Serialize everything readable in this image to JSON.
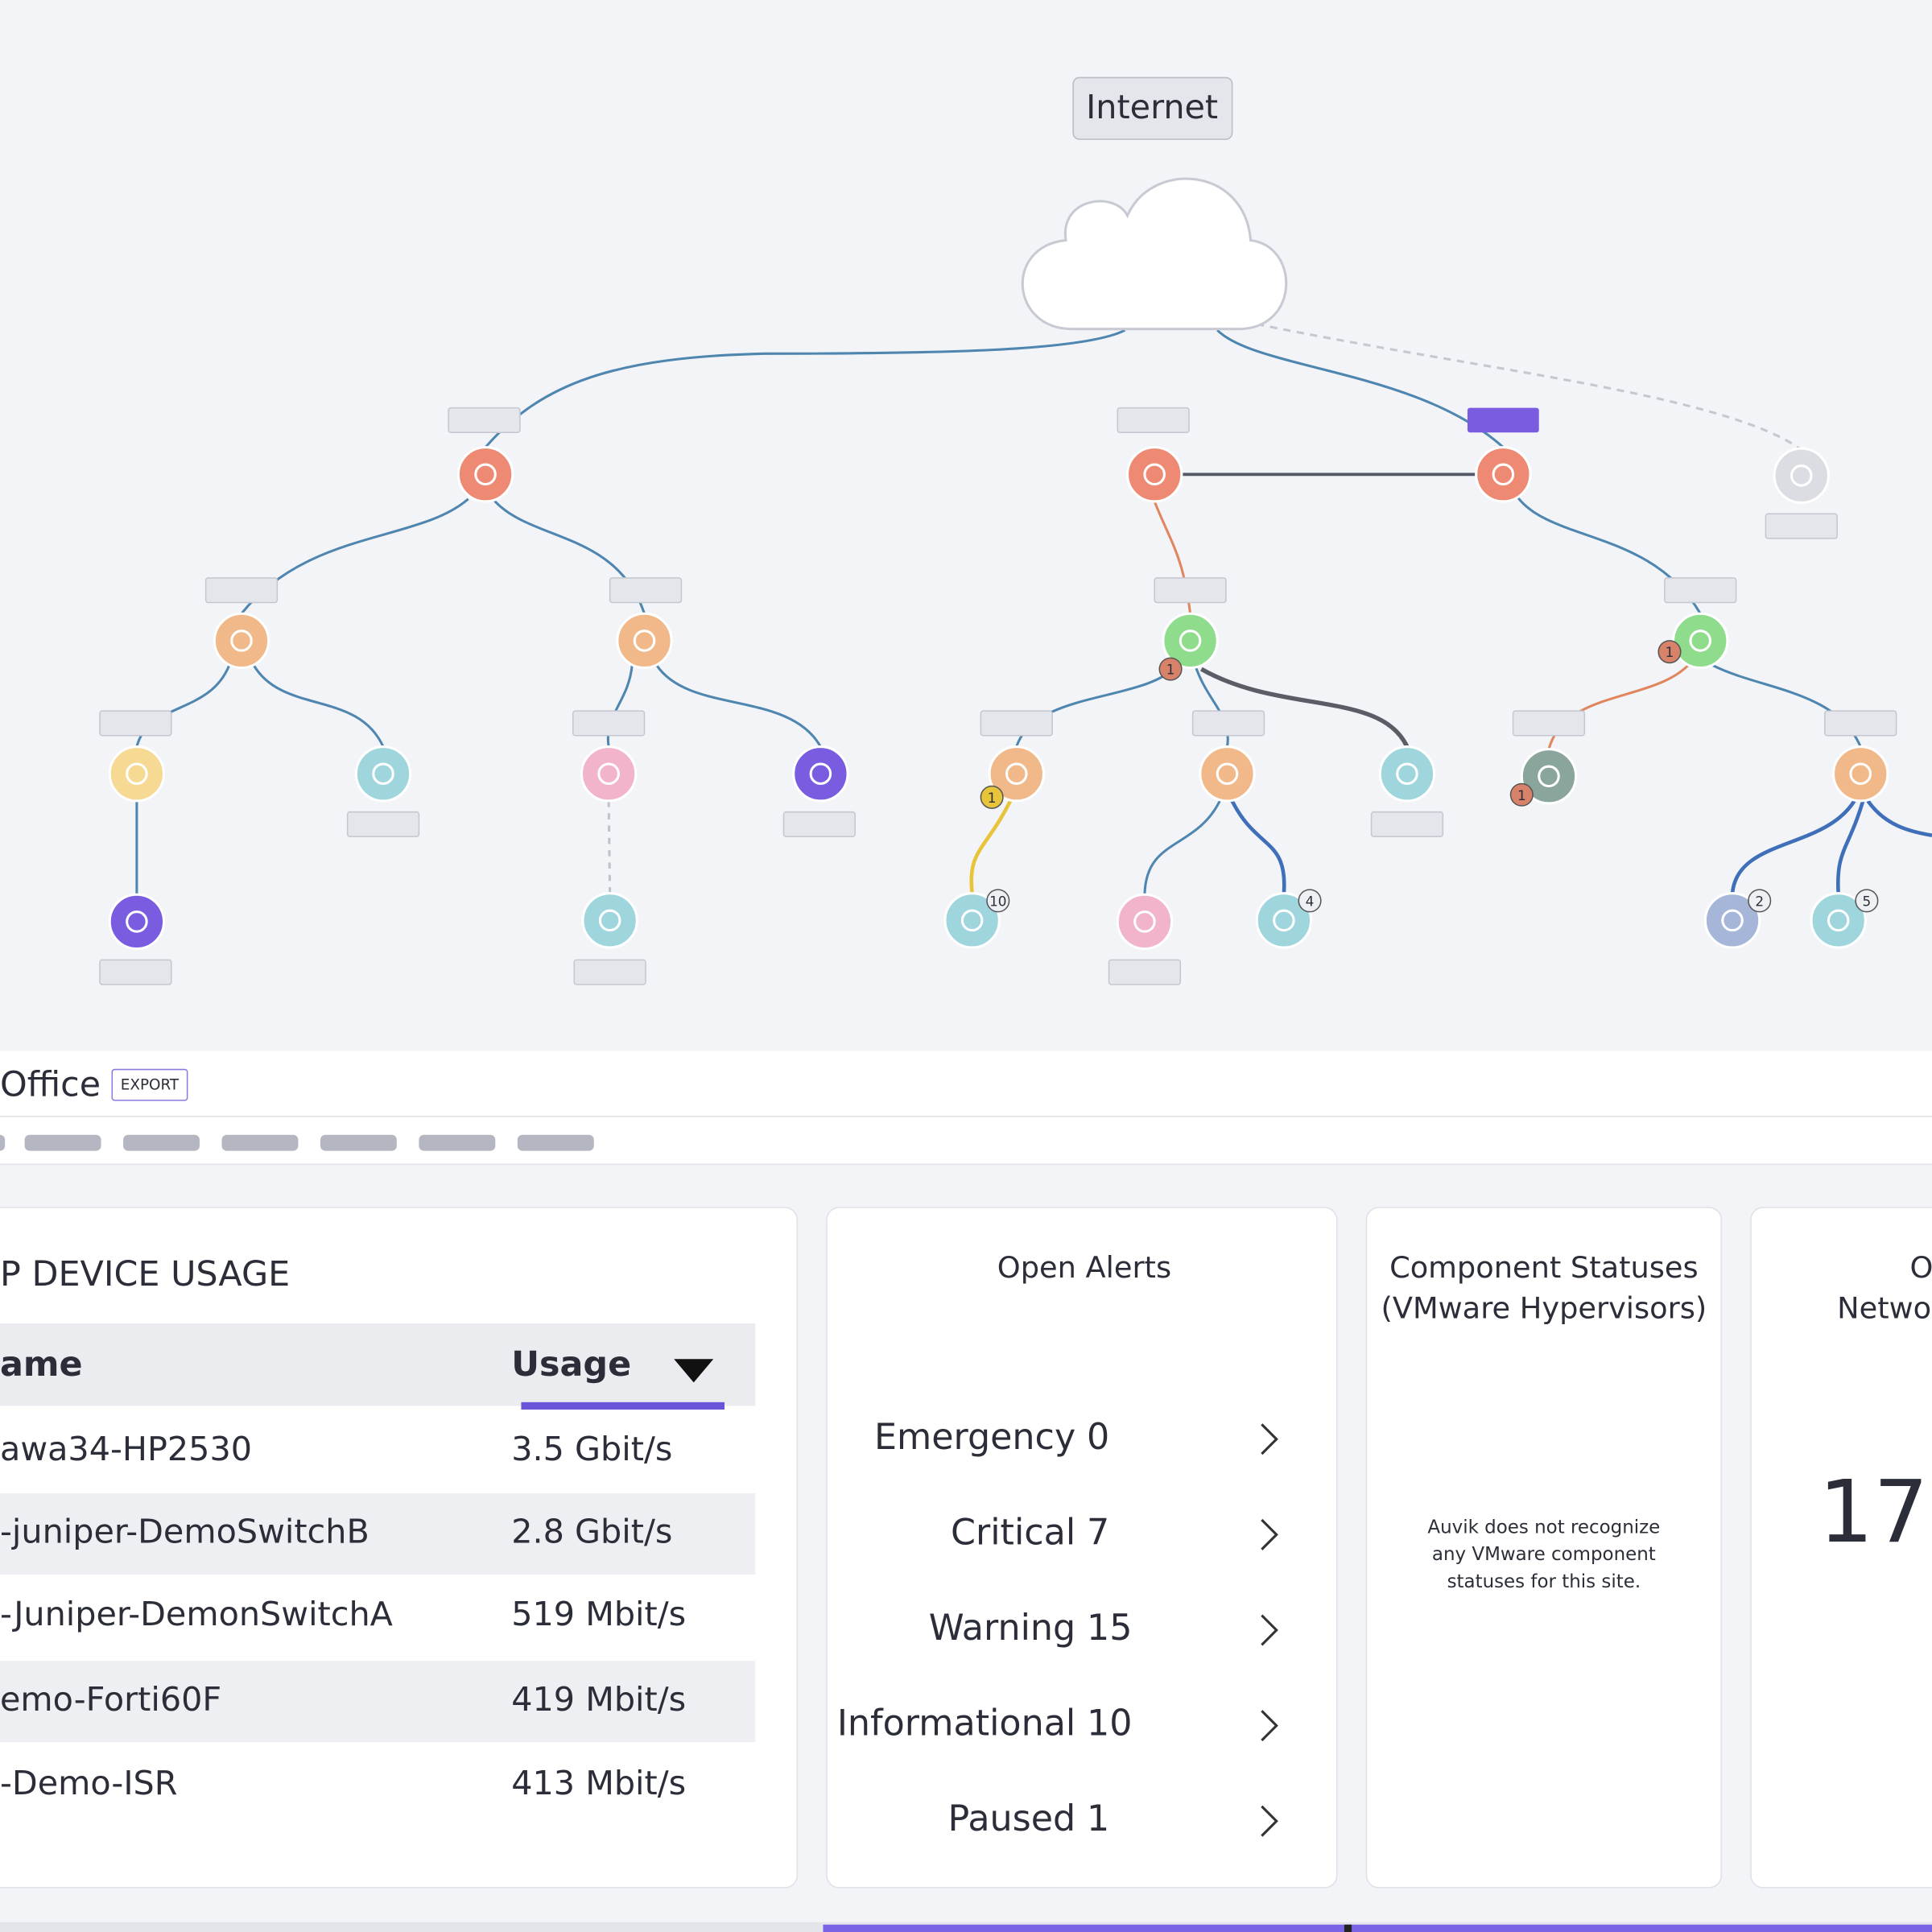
{
  "topology": {
    "title": "Internet",
    "badges": [
      1,
      1,
      1,
      1,
      10,
      4,
      2,
      5
    ]
  },
  "site": {
    "name": "Office",
    "export": "EXPORT"
  },
  "device_usage": {
    "title": "P DEVICE USAGE",
    "columns": [
      "ame",
      "Usage"
    ],
    "rows": [
      [
        "awa34-HP2530",
        "3.5 Gbit/s"
      ],
      [
        "-juniper-DemoSwitchB",
        "2.8 Gbit/s"
      ],
      [
        "-Juniper-DemonSwitchA",
        "519 Mbit/s"
      ],
      [
        "emo-Forti60F",
        "419 Mbit/s"
      ],
      [
        "-Demo-ISR",
        "413 Mbit/s"
      ]
    ]
  },
  "open_alerts": {
    "title": "Open Alerts",
    "levels": [
      {
        "name": "Emergency",
        "count": 0,
        "color": "#c0302f"
      },
      {
        "name": "Critical",
        "count": 7,
        "color": "#c9602a"
      },
      {
        "name": "Warning",
        "count": 15,
        "color": "#a9822e"
      },
      {
        "name": "Informational",
        "count": 10,
        "color": "#4a6396"
      },
      {
        "name": "Paused",
        "count": 1,
        "color": "#333333"
      }
    ]
  },
  "component_statuses": {
    "title": [
      "Component Statuses",
      "(VMware Hypervisors)"
    ],
    "message": [
      "Auvik does not recognize",
      "any VMware component",
      "statuses for this site."
    ]
  },
  "network": {
    "title": [
      "O",
      "Networ"
    ],
    "value": 17
  }
}
